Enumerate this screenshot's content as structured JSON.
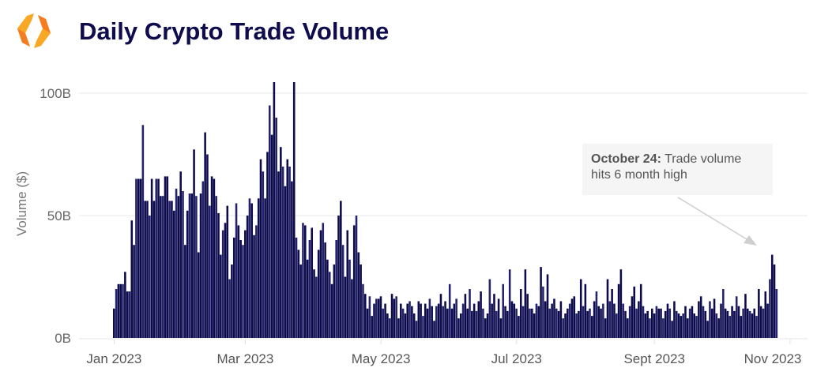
{
  "header": {
    "title": "Daily Crypto Trade Volume"
  },
  "colors": {
    "bar": "#0d0b4c",
    "bar_light": "#23226a",
    "grid": "#e8e8e8",
    "logo_a": "#f7a21b",
    "logo_b": "#f58220"
  },
  "annotation": {
    "date_label": "October 24:",
    "text": "Trade volume hits 6 month high"
  },
  "chart_data": {
    "type": "bar",
    "title": "Daily Crypto Trade Volume",
    "xlabel": "",
    "ylabel": "Volume ($)",
    "ylim": [
      0,
      100
    ],
    "y_unit": "B",
    "start_date": "2023-01-01",
    "y_ticks": [
      {
        "value": 0,
        "label": "0B"
      },
      {
        "value": 50,
        "label": "50B"
      },
      {
        "value": 100,
        "label": "100B"
      }
    ],
    "x_ticks": [
      {
        "day": 0,
        "label": "Jan 2023"
      },
      {
        "day": 59,
        "label": "Mar 2023"
      },
      {
        "day": 120,
        "label": "May 2023"
      },
      {
        "day": 181,
        "label": "Jul 2023"
      },
      {
        "day": 243,
        "label": "Sept 2023"
      },
      {
        "day": 304,
        "label": "Nov 2023"
      }
    ],
    "grid": true,
    "values": [
      12,
      20,
      22,
      22,
      22,
      27,
      19,
      19,
      48,
      38,
      65,
      65,
      65,
      87,
      56,
      56,
      50,
      65,
      56,
      65,
      65,
      58,
      58,
      66,
      66,
      56,
      56,
      52,
      61,
      58,
      68,
      60,
      38,
      52,
      59,
      59,
      77,
      58,
      35,
      59,
      64,
      84,
      75,
      54,
      66,
      65,
      58,
      51,
      34,
      44,
      47,
      54,
      24,
      30,
      41,
      55,
      46,
      40,
      38,
      44,
      50,
      57,
      55,
      42,
      46,
      57,
      73,
      68,
      57,
      76,
      95,
      83,
      105,
      90,
      68,
      78,
      70,
      62,
      73,
      70,
      64,
      105,
      41,
      36,
      30,
      47,
      46,
      32,
      40,
      45,
      28,
      25,
      36,
      44,
      47,
      39,
      32,
      27,
      22,
      30,
      40,
      50,
      56,
      38,
      25,
      44,
      32,
      24,
      46,
      50,
      35,
      30,
      22,
      18,
      12,
      17,
      9,
      14,
      16,
      16,
      17,
      12,
      14,
      10,
      8,
      18,
      16,
      17,
      8,
      14,
      12,
      10,
      14,
      15,
      13,
      10,
      7,
      15,
      14,
      9,
      14,
      12,
      16,
      13,
      7,
      13,
      14,
      18,
      13,
      15,
      12,
      22,
      12,
      14,
      16,
      8,
      10,
      14,
      18,
      12,
      20,
      11,
      14,
      11,
      15,
      19,
      12,
      8,
      10,
      24,
      14,
      18,
      11,
      16,
      8,
      22,
      13,
      11,
      28,
      15,
      14,
      12,
      9,
      20,
      13,
      28,
      18,
      12,
      12,
      10,
      14,
      13,
      29,
      21,
      15,
      26,
      12,
      14,
      16,
      12,
      11,
      15,
      8,
      10,
      12,
      14,
      16,
      17,
      10,
      11,
      24,
      13,
      22,
      11,
      12,
      9,
      15,
      19,
      13,
      12,
      14,
      8,
      24,
      15,
      20,
      14,
      10,
      22,
      28,
      14,
      11,
      8,
      13,
      17,
      21,
      12,
      15,
      22,
      13,
      10,
      11,
      8,
      12,
      10,
      13,
      12,
      12,
      8,
      11,
      14,
      12,
      7,
      15,
      11,
      10,
      9,
      10,
      13,
      8,
      12,
      13,
      10,
      9,
      15,
      17,
      13,
      11,
      7,
      15,
      12,
      16,
      10,
      8,
      14,
      20,
      12,
      11,
      9,
      13,
      11,
      17,
      13,
      9,
      12,
      18,
      12,
      11,
      10,
      12,
      9,
      20,
      13,
      12,
      19,
      14,
      24,
      34,
      30,
      20
    ]
  }
}
